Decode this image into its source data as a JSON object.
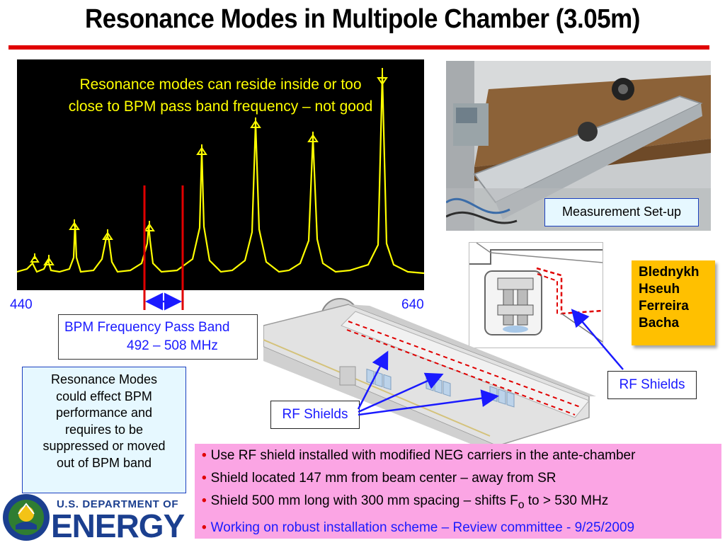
{
  "slide": {
    "title": "Resonance Modes in Multipole Chamber (3.05m)"
  },
  "spectrum": {
    "caption_line1": "Resonance modes  can reside inside or too",
    "caption_line2": "close  to BPM pass band frequency – not good",
    "x_start_label": "440",
    "x_end_label": "640"
  },
  "pass_band": {
    "label": "BPM Frequency Pass Band",
    "range": "492 – 508 MHz"
  },
  "resonance_note": {
    "lines": [
      "Resonance Modes",
      "could effect BPM",
      "performance and",
      "requires to be",
      "suppressed or moved",
      "out of BPM band"
    ]
  },
  "photo": {
    "caption": "Measurement Set-up"
  },
  "authors": [
    "Blednykh",
    "Hseuh",
    "Ferreira",
    "Bacha"
  ],
  "rf_shields": {
    "label_right": "RF Shields",
    "label_left": "RF Shields"
  },
  "bullets": {
    "b1": "Use RF shield installed with modified NEG carriers in the ante-chamber",
    "b2": "Shield located 147 mm from beam center – away from SR",
    "b3_pre": "Shield 500 mm long with 300 mm spacing – shifts  F",
    "b3_sub": "o",
    "b3_post": " to > 530 MHz",
    "b4": "Working on robust installation scheme – Review committee - 9/25/2009"
  },
  "logo": {
    "line1": "U.S. DEPARTMENT OF",
    "line2": "ENERGY"
  },
  "colors": {
    "title_rule": "#e00000",
    "trace": "#ffff00",
    "band_marker": "#e00000",
    "label_blue": "#1a1aff",
    "author_box": "#ffc000",
    "bullet_box": "#fba5e4",
    "note_box": "#e6f8ff"
  }
}
